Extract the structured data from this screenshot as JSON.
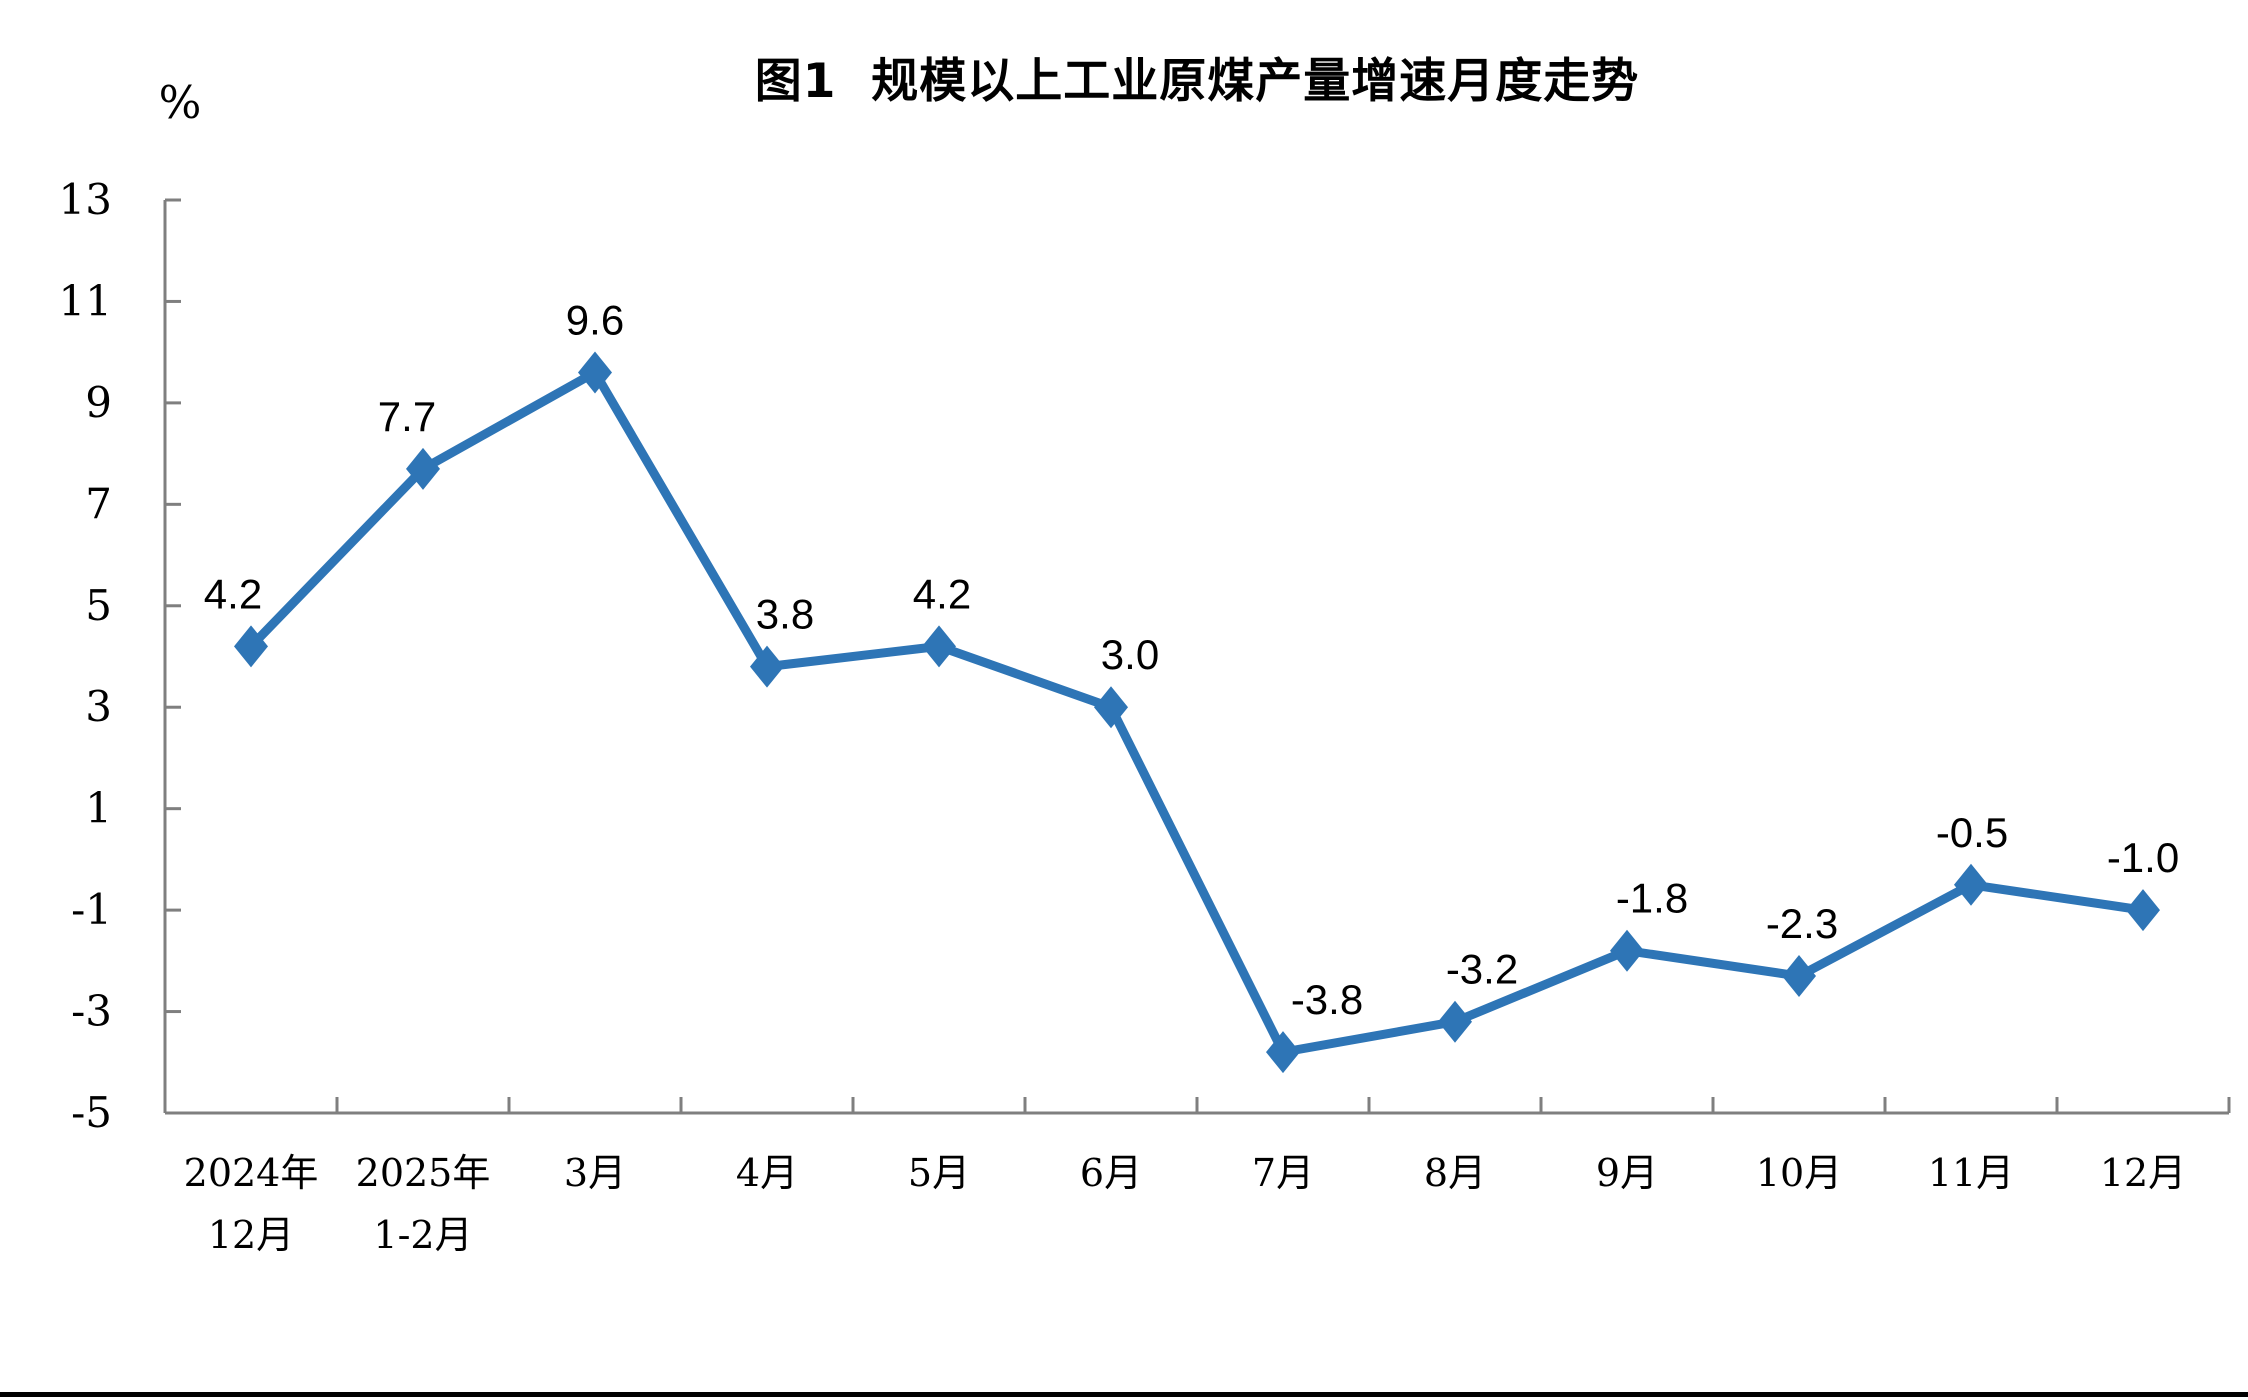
{
  "chart_data": {
    "type": "line",
    "title": "图1  规模以上工业原煤产量增速月度走势",
    "ylabel": "%",
    "xlabel": "",
    "ylim": [
      -5,
      13
    ],
    "y_ticks": [
      13,
      11,
      9,
      7,
      5,
      3,
      1,
      -1,
      -3,
      -5
    ],
    "categories": [
      "2024年12月",
      "2025年1-2月",
      "3月",
      "4月",
      "5月",
      "6月",
      "7月",
      "8月",
      "9月",
      "10月",
      "11月",
      "12月"
    ],
    "category_lines": [
      [
        "2024年",
        "12月"
      ],
      [
        "2025年",
        "1-2月"
      ],
      [
        "3月"
      ],
      [
        "4月"
      ],
      [
        "5月"
      ],
      [
        "6月"
      ],
      [
        "7月"
      ],
      [
        "8月"
      ],
      [
        "9月"
      ],
      [
        "10月"
      ],
      [
        "11月"
      ],
      [
        "12月"
      ]
    ],
    "values": [
      4.2,
      7.7,
      9.6,
      3.8,
      4.2,
      3.0,
      -3.8,
      -3.2,
      -1.8,
      -2.3,
      -0.5,
      -1.0
    ],
    "data_labels": [
      "4.2",
      "7.7",
      "9.6",
      "3.8",
      "4.2",
      "3.0",
      "-3.8",
      "-3.2",
      "-1.8",
      "-2.3",
      "-0.5",
      "-1.0"
    ],
    "grid": false,
    "legend": "none",
    "marker": "diamond",
    "colors": {
      "line": "#2E75B6",
      "marker": "#2E75B6",
      "axis": "#7F7F7F",
      "text": "#000000",
      "bottom_rule": "#000000"
    }
  }
}
